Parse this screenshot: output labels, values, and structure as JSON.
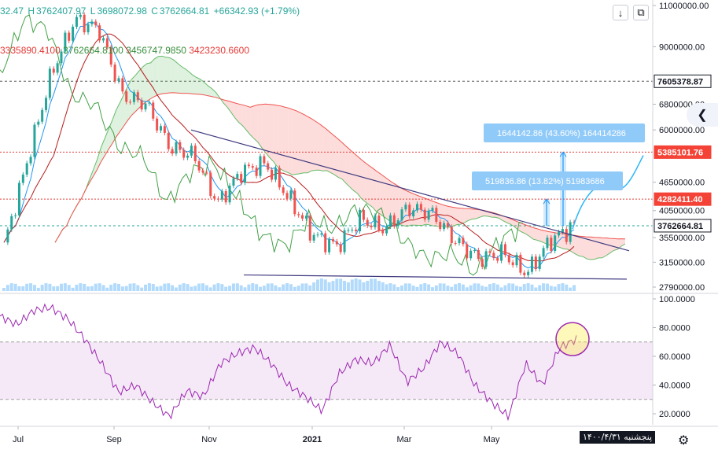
{
  "header": {
    "ohlc": {
      "open": "32.47",
      "high_label": "H",
      "high": "3762407.97",
      "low_label": "L",
      "low": "3698072.98",
      "close_label": "C",
      "close": "3762664.81",
      "change": "+66342.93 (+1.79%)"
    },
    "indicator_values": {
      "v1": "3335890.4100",
      "v2": "3762664.8100",
      "v3": "3456747.9850",
      "v4": "3423230.6600"
    },
    "colors": {
      "v1": "#e53935",
      "v2": "#388e3c",
      "v3": "#388e3c",
      "v4": "#e53935"
    },
    "buttons": {
      "down_arrow": "↓",
      "fullscreen": "⧉"
    }
  },
  "chart_data": [
    {
      "type": "line",
      "panel": "price",
      "y_axis_ticks": [
        "11000000.00",
        "9000000.00",
        "6800000.00",
        "6000000.00",
        "4650000.00",
        "4050000.00",
        "3550000.00",
        "3150000.00",
        "2790000.00"
      ],
      "y_axis_scale": "log",
      "price_labels": [
        {
          "value": "7605378.87",
          "bg": "#ffffff",
          "fg": "#131722"
        },
        {
          "value": "5385101.76",
          "bg": "#f44336",
          "fg": "#ffffff"
        },
        {
          "value": "4282411.40",
          "bg": "#f44336",
          "fg": "#ffffff"
        },
        {
          "value": "3762664.81",
          "bg": "#ffffff",
          "fg": "#131722"
        }
      ],
      "annotations": [
        {
          "text": "1644142.86 (43.60%) 164414286"
        },
        {
          "text": "519836.86 (13.82%) 51983686"
        }
      ],
      "x_axis_labels": [
        "Jul",
        "Sep",
        "Nov",
        "2021",
        "Mar",
        "May"
      ],
      "series": [
        {
          "x": [
            "Jun",
            "Jul",
            "Jul",
            "Aug",
            "Aug",
            "Sep",
            "Sep",
            "Oct",
            "Oct",
            "Nov",
            "Nov",
            "Dec",
            "Dec",
            "Jan",
            "Jan",
            "Feb",
            "Feb",
            "Mar",
            "Mar",
            "Apr",
            "Apr",
            "May",
            "May",
            "Jun",
            "Jun"
          ],
          "values": [
            3400000,
            5200000,
            7900000,
            10300000,
            9800000,
            7100000,
            6800000,
            5500000,
            5300000,
            4200000,
            4900000,
            5100000,
            4300000,
            3600000,
            3400000,
            3900000,
            3700000,
            4100000,
            4000000,
            3500000,
            3200000,
            3300000,
            2980000,
            3500000,
            3762664.81
          ]
        }
      ]
    },
    {
      "type": "line",
      "panel": "rsi",
      "y_axis_ticks": [
        "100.0000",
        "80.0000",
        "60.0000",
        "40.0000",
        "20.0000"
      ],
      "ylim": [
        14,
        100
      ],
      "bands": [
        30,
        70
      ],
      "series": [
        {
          "values": [
            88,
            82,
            92,
            94,
            86,
            72,
            55,
            35,
            40,
            28,
            18,
            36,
            32,
            55,
            62,
            66,
            55,
            40,
            32,
            22,
            48,
            58,
            55,
            68,
            42,
            52,
            70,
            62,
            40,
            28,
            18,
            55,
            40,
            66,
            72
          ]
        }
      ]
    }
  ],
  "footer": {
    "date_tag": "پنجشنبه ۱۴۰۰/۴/۳۱",
    "settings_icon": "⚙"
  },
  "side_button": "❮"
}
